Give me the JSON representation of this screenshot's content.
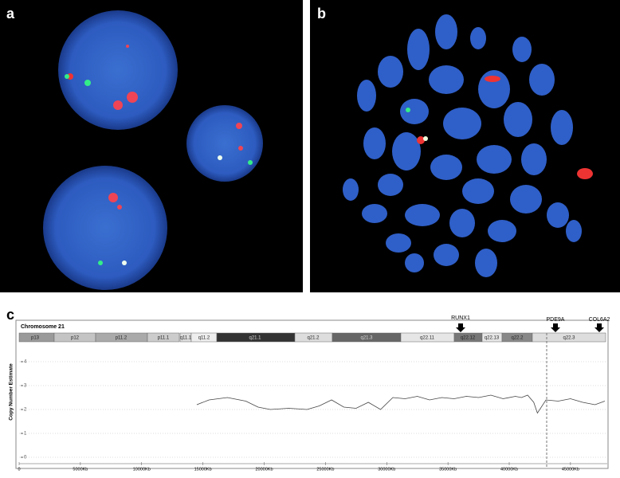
{
  "panels": {
    "a": "a",
    "b": "b",
    "c": "c"
  },
  "chart_data": {
    "type": "line",
    "title": "Chromosome 21",
    "ylabel": "Copy Number Estimate",
    "bands": [
      "p13",
      "p12",
      "p11.2",
      "p11.1",
      "q11.1",
      "q11.2",
      "q21.1",
      "q21.2",
      "q21.3",
      "q22.11",
      "q22.12",
      "q22.13",
      "q22.2",
      "q22.3"
    ],
    "markers": [
      "RUNX1",
      "PDE9A",
      "COL6A2"
    ],
    "xlim": [
      0,
      48000
    ],
    "ylim": [
      0,
      5
    ],
    "xticks": [
      0,
      {
        "value": 5000,
        "label": "5000Kb"
      },
      {
        "value": 10000,
        "label": "10000Kb"
      },
      {
        "value": 15000,
        "label": "15000Kb"
      },
      {
        "value": 20000,
        "label": "20000Kb"
      },
      {
        "value": 25000,
        "label": "25000Kb"
      },
      {
        "value": 30000,
        "label": "30000Kb"
      },
      {
        "value": 35000,
        "label": "35000Kb"
      },
      {
        "value": 40000,
        "label": "40000Kb"
      },
      {
        "value": 45000,
        "label": "45000Kb"
      }
    ],
    "yticks": [
      0,
      1,
      2,
      3,
      4
    ],
    "grid": true,
    "color": "#444",
    "x": [
      14500,
      15500,
      17000,
      18500,
      19500,
      20500,
      22000,
      23500,
      24500,
      25500,
      26500,
      27500,
      28500,
      29500,
      30500,
      31500,
      32500,
      33500,
      34500,
      35500,
      36500,
      37500,
      38500,
      39500,
      40500,
      41000,
      41500,
      42000,
      42300,
      43000,
      44000,
      45000,
      46000,
      47000,
      47800
    ],
    "values": [
      2.2,
      2.4,
      2.5,
      2.35,
      2.1,
      2.0,
      2.05,
      2.0,
      2.15,
      2.4,
      2.1,
      2.05,
      2.3,
      2.0,
      2.5,
      2.45,
      2.55,
      2.4,
      2.5,
      2.45,
      2.55,
      2.5,
      2.6,
      2.45,
      2.55,
      2.5,
      2.6,
      2.3,
      1.85,
      2.4,
      2.35,
      2.45,
      2.3,
      2.2,
      2.35
    ]
  }
}
